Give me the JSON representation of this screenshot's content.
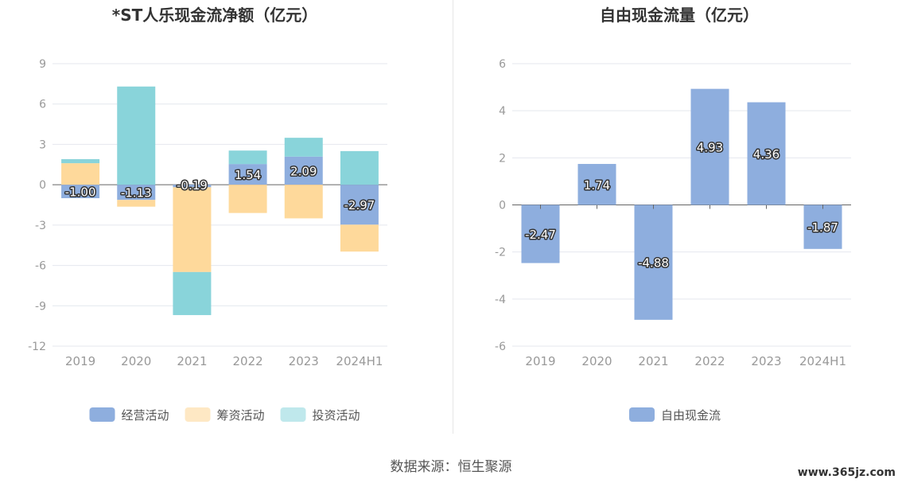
{
  "source_text": "数据来源：恒生聚源",
  "watermark": "www.365jz.com",
  "chart_data": [
    {
      "type": "bar",
      "stacked": true,
      "title": "*ST人乐现金流净额（亿元）",
      "categories": [
        "2019",
        "2020",
        "2021",
        "2022",
        "2023",
        "2024H1"
      ],
      "ylim": [
        -12,
        9
      ],
      "yticks": [
        9,
        6,
        3,
        0,
        -3,
        -6,
        -9,
        -12
      ],
      "grid": true,
      "legend_position": "bottom",
      "series": [
        {
          "name": "经营活动",
          "color": "#8eaede",
          "values": [
            -1.0,
            -1.13,
            -0.19,
            1.54,
            2.09,
            -2.97
          ],
          "show_labels": true
        },
        {
          "name": "筹资活动",
          "color": "#fed99b",
          "values": [
            1.6,
            -0.5,
            -6.3,
            -2.1,
            -2.5,
            -2.0
          ],
          "show_labels": false
        },
        {
          "name": "投资活动",
          "color": "#89d4da",
          "values": [
            0.3,
            7.3,
            -3.2,
            1.0,
            1.4,
            2.5
          ],
          "show_labels": false
        }
      ]
    },
    {
      "type": "bar",
      "stacked": false,
      "title": "自由现金流量（亿元）",
      "categories": [
        "2019",
        "2020",
        "2021",
        "2022",
        "2023",
        "2024H1"
      ],
      "ylim": [
        -6,
        6
      ],
      "yticks": [
        6,
        4,
        2,
        0,
        -2,
        -4,
        -6
      ],
      "grid": true,
      "legend_position": "bottom",
      "series": [
        {
          "name": "自由现金流",
          "color": "#8eaede",
          "values": [
            -2.47,
            1.74,
            -4.88,
            4.93,
            4.36,
            -1.87
          ],
          "show_labels": true
        }
      ]
    }
  ]
}
